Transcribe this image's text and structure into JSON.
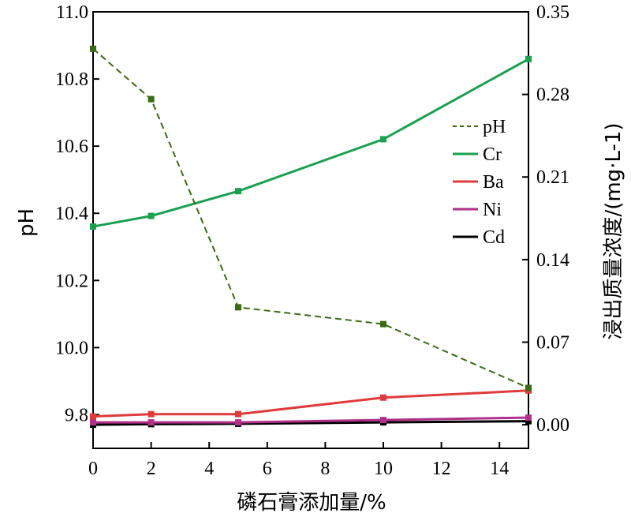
{
  "chart_data": {
    "type": "line",
    "x": [
      0,
      2,
      5,
      10,
      15
    ],
    "xlabel": "磷石膏添加量/%",
    "xlim": [
      0,
      15
    ],
    "xticks": [
      "0",
      "2",
      "4",
      "6",
      "8",
      "10",
      "12",
      "14"
    ],
    "ylabel_left": "pH",
    "ylim_left": [
      9.7,
      11.0
    ],
    "yticks_left": [
      "9.8",
      "10.0",
      "10.2",
      "10.4",
      "10.6",
      "10.8",
      "11.0"
    ],
    "ylabel_right": "浸出质量浓度/(mg·L-1)",
    "ylim_right": [
      -0.02,
      0.35
    ],
    "yticks_right": [
      "0.00",
      "0.07",
      "0.14",
      "0.21",
      "0.28",
      "0.35"
    ],
    "legend_position": "right",
    "series": [
      {
        "name": "pH",
        "axis": "left",
        "style": "dashed",
        "color": "#3a6a12",
        "values": [
          10.89,
          10.74,
          10.12,
          10.07,
          9.88
        ]
      },
      {
        "name": "Cr",
        "axis": "right",
        "style": "solid",
        "color": "#1aa050",
        "values": [
          0.168,
          0.177,
          0.198,
          0.242,
          0.31
        ]
      },
      {
        "name": "Ba",
        "axis": "right",
        "style": "solid",
        "color": "#e03a3a",
        "values": [
          0.007,
          0.009,
          0.009,
          0.023,
          0.029
        ]
      },
      {
        "name": "Ni",
        "axis": "right",
        "style": "solid",
        "color": "#b0308a",
        "values": [
          0.002,
          0.002,
          0.002,
          0.004,
          0.006
        ]
      },
      {
        "name": "Cd",
        "axis": "right",
        "style": "solid",
        "color": "#000000",
        "values": [
          0.0,
          0.0005,
          0.0008,
          0.002,
          0.003
        ]
      }
    ]
  }
}
